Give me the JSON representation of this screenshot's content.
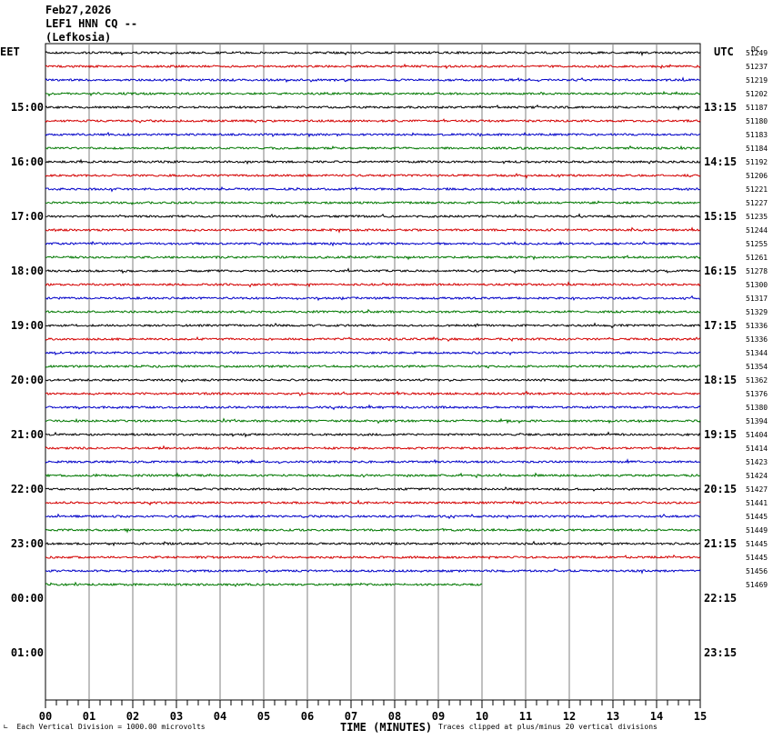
{
  "header": {
    "date": "Feb27,2026",
    "station": "LEF1 HNN CQ --",
    "location": "(Lefkosia)"
  },
  "left_tz": "EET",
  "right_tz": "UTC",
  "dc_label": "DC",
  "footer": {
    "scale": "Each Vertical Division = 1000.00 microvolts",
    "xlabel": "TIME (MINUTES)",
    "clip": "Traces clipped at plus/minus 20 vertical divisions"
  },
  "chart_data": {
    "type": "line",
    "title": "LEF1 HNN CQ -- (Lefkosia)",
    "xlabel": "TIME (MINUTES)",
    "xlim": [
      0,
      15
    ],
    "x_ticks": [
      "00",
      "01",
      "02",
      "03",
      "04",
      "05",
      "06",
      "07",
      "08",
      "09",
      "10",
      "11",
      "12",
      "13",
      "14",
      "15"
    ],
    "trace_colors": [
      "#000000",
      "#d40000",
      "#0000c8",
      "#007800"
    ],
    "left_hour_labels": [
      "15:00",
      "16:00",
      "17:00",
      "18:00",
      "19:00",
      "20:00",
      "21:00",
      "22:00",
      "23:00",
      "00:00",
      "01:00"
    ],
    "right_hour_labels": [
      "13:15",
      "14:15",
      "15:15",
      "16:15",
      "17:15",
      "18:15",
      "19:15",
      "20:15",
      "21:15",
      "22:15",
      "23:15"
    ],
    "rows_per_hour": 4,
    "total_rows": 48,
    "traces_recorded": 40,
    "last_trace_end_minute": 10,
    "dc_offsets": [
      51249,
      51237,
      51219,
      51202,
      51187,
      51180,
      51183,
      51184,
      51192,
      51206,
      51221,
      51227,
      51235,
      51244,
      51255,
      51261,
      51278,
      51300,
      51317,
      51329,
      51336,
      51336,
      51344,
      51354,
      51362,
      51376,
      51380,
      51394,
      51404,
      51414,
      51423,
      51424,
      51427,
      51441,
      51445,
      51449,
      51445,
      51445,
      51456,
      51469
    ]
  }
}
